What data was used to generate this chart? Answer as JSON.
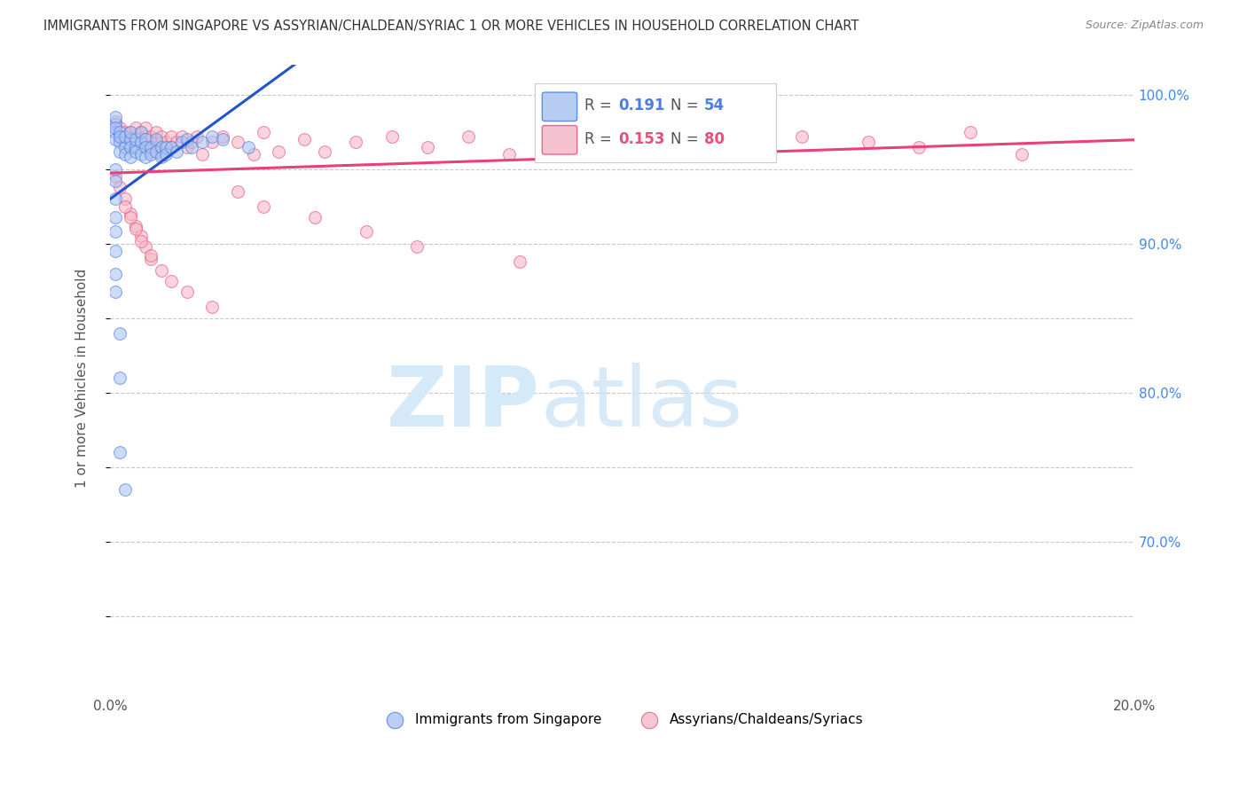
{
  "title": "IMMIGRANTS FROM SINGAPORE VS ASSYRIAN/CHALDEAN/SYRIAC 1 OR MORE VEHICLES IN HOUSEHOLD CORRELATION CHART",
  "source": "Source: ZipAtlas.com",
  "ylabel": "1 or more Vehicles in Household",
  "xlim": [
    0.0,
    0.2
  ],
  "ylim": [
    0.6,
    1.02
  ],
  "xticks": [
    0.0,
    0.04,
    0.08,
    0.12,
    0.16,
    0.2
  ],
  "xticklabels": [
    "0.0%",
    "",
    "",
    "",
    "",
    "20.0%"
  ],
  "ytick_positions": [
    0.65,
    0.7,
    0.75,
    0.8,
    0.85,
    0.9,
    0.95,
    1.0
  ],
  "ytick_labels_right": [
    "",
    "70.0%",
    "",
    "80.0%",
    "",
    "90.0%",
    "",
    "100.0%"
  ],
  "background_color": "#ffffff",
  "grid_color": "#c8c8c8",
  "legend_R1": "0.191",
  "legend_N1": "54",
  "legend_R2": "0.153",
  "legend_N2": "80",
  "blue_color": "#aac4f0",
  "blue_edge_color": "#4a7de8",
  "pink_color": "#f5b8c8",
  "pink_edge_color": "#e8507a",
  "blue_line_color": "#2255cc",
  "pink_line_color": "#e8407a",
  "title_color": "#333333",
  "right_axis_color": "#4488ee",
  "scatter_alpha": 0.6,
  "marker_size": 100,
  "blue_scatter_x": [
    0.001,
    0.001,
    0.001,
    0.001,
    0.001,
    0.002,
    0.002,
    0.002,
    0.002,
    0.003,
    0.003,
    0.003,
    0.004,
    0.004,
    0.004,
    0.004,
    0.005,
    0.005,
    0.005,
    0.006,
    0.006,
    0.006,
    0.007,
    0.007,
    0.007,
    0.008,
    0.008,
    0.009,
    0.009,
    0.01,
    0.01,
    0.011,
    0.011,
    0.012,
    0.013,
    0.014,
    0.015,
    0.016,
    0.018,
    0.02,
    0.001,
    0.001,
    0.001,
    0.001,
    0.001,
    0.001,
    0.001,
    0.001,
    0.002,
    0.002,
    0.002,
    0.003,
    0.022,
    0.027
  ],
  "blue_scatter_y": [
    0.98,
    0.975,
    0.97,
    0.985,
    0.978,
    0.975,
    0.968,
    0.962,
    0.972,
    0.965,
    0.96,
    0.972,
    0.97,
    0.965,
    0.958,
    0.975,
    0.965,
    0.97,
    0.962,
    0.968,
    0.975,
    0.96,
    0.97,
    0.965,
    0.958,
    0.965,
    0.96,
    0.97,
    0.962,
    0.965,
    0.958,
    0.965,
    0.96,
    0.965,
    0.962,
    0.968,
    0.97,
    0.965,
    0.968,
    0.972,
    0.95,
    0.942,
    0.93,
    0.918,
    0.908,
    0.895,
    0.88,
    0.868,
    0.84,
    0.81,
    0.76,
    0.735,
    0.97,
    0.965
  ],
  "pink_scatter_x": [
    0.001,
    0.002,
    0.002,
    0.003,
    0.003,
    0.004,
    0.004,
    0.004,
    0.005,
    0.005,
    0.005,
    0.006,
    0.006,
    0.007,
    0.007,
    0.007,
    0.008,
    0.008,
    0.008,
    0.009,
    0.009,
    0.01,
    0.01,
    0.01,
    0.011,
    0.011,
    0.012,
    0.012,
    0.013,
    0.014,
    0.015,
    0.016,
    0.017,
    0.018,
    0.02,
    0.022,
    0.025,
    0.028,
    0.03,
    0.033,
    0.038,
    0.042,
    0.048,
    0.055,
    0.062,
    0.07,
    0.078,
    0.085,
    0.095,
    0.105,
    0.115,
    0.125,
    0.135,
    0.148,
    0.158,
    0.168,
    0.001,
    0.002,
    0.003,
    0.004,
    0.005,
    0.006,
    0.007,
    0.008,
    0.003,
    0.004,
    0.005,
    0.006,
    0.008,
    0.01,
    0.012,
    0.015,
    0.02,
    0.025,
    0.03,
    0.04,
    0.05,
    0.06,
    0.08,
    0.178
  ],
  "pink_scatter_y": [
    0.982,
    0.978,
    0.972,
    0.975,
    0.968,
    0.975,
    0.97,
    0.965,
    0.972,
    0.965,
    0.978,
    0.968,
    0.975,
    0.972,
    0.965,
    0.978,
    0.968,
    0.972,
    0.962,
    0.968,
    0.975,
    0.965,
    0.972,
    0.96,
    0.968,
    0.962,
    0.972,
    0.965,
    0.968,
    0.972,
    0.965,
    0.968,
    0.972,
    0.96,
    0.968,
    0.972,
    0.968,
    0.96,
    0.975,
    0.962,
    0.97,
    0.962,
    0.968,
    0.972,
    0.965,
    0.972,
    0.96,
    0.968,
    0.972,
    0.975,
    0.968,
    0.965,
    0.972,
    0.968,
    0.965,
    0.975,
    0.945,
    0.938,
    0.93,
    0.92,
    0.912,
    0.905,
    0.898,
    0.89,
    0.925,
    0.918,
    0.91,
    0.902,
    0.892,
    0.882,
    0.875,
    0.868,
    0.858,
    0.935,
    0.925,
    0.918,
    0.908,
    0.898,
    0.888,
    0.96
  ]
}
